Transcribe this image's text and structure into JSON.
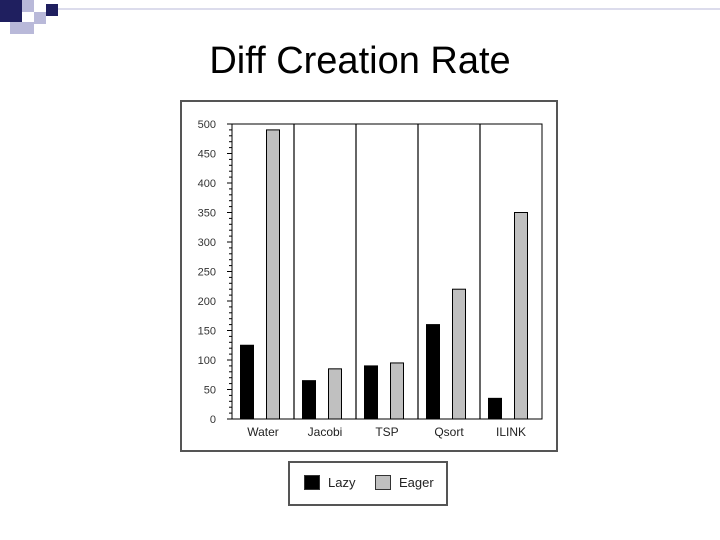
{
  "slide": {
    "title": "Diff Creation Rate"
  },
  "colors": {
    "accent_dark": "#1f1f5f",
    "accent_light": "#b9b9d9",
    "lazy": "#000000",
    "eager": "#c0c0c0",
    "gridline": "#000000"
  },
  "chart_data": {
    "type": "bar",
    "categories": [
      "Water",
      "Jacobi",
      "TSP",
      "Qsort",
      "ILINK"
    ],
    "series": [
      {
        "name": "Lazy",
        "values": [
          125,
          65,
          90,
          160,
          35
        ]
      },
      {
        "name": "Eager",
        "values": [
          490,
          85,
          95,
          220,
          350
        ]
      }
    ],
    "ylim": [
      0,
      500
    ],
    "yticks": [
      "0",
      "50",
      "100",
      "150",
      "200",
      "250",
      "300",
      "350",
      "400",
      "450",
      "500"
    ],
    "grid": "vertical",
    "legend_position": "bottom"
  },
  "legend": {
    "items": [
      {
        "label": "Lazy"
      },
      {
        "label": "Eager"
      }
    ]
  }
}
